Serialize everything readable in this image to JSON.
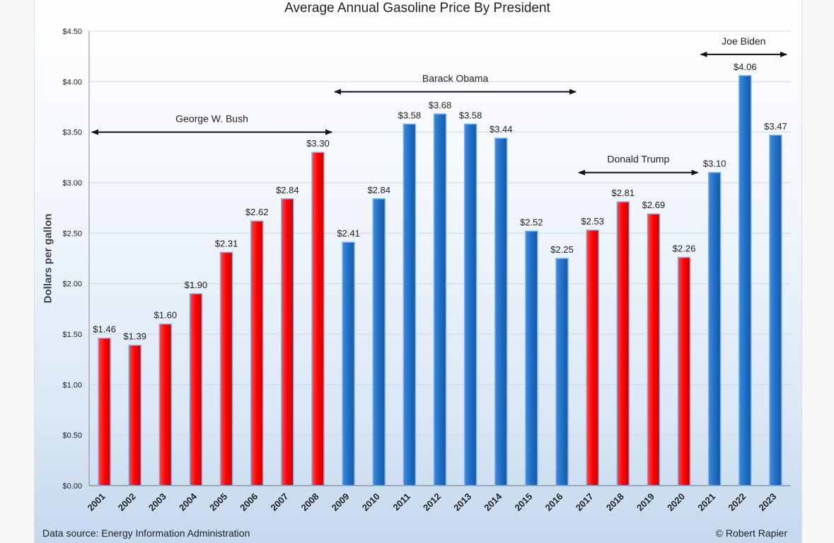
{
  "chart_data": {
    "type": "bar",
    "title": "Average Annual Gasoline Price By President",
    "ylabel": "Dollars per gallon",
    "xlabel": "",
    "ylim": [
      0,
      4.5
    ],
    "yticks": [
      0,
      0.5,
      1.0,
      1.5,
      2.0,
      2.5,
      3.0,
      3.5,
      4.0,
      4.5
    ],
    "ytick_labels": [
      "$0.00",
      "$0.50",
      "$1.00",
      "$1.50",
      "$2.00",
      "$2.50",
      "$3.00",
      "$3.50",
      "$4.00",
      "$4.50"
    ],
    "grid": "horizontal",
    "categories": [
      "2001",
      "2002",
      "2003",
      "2004",
      "2005",
      "2006",
      "2007",
      "2008",
      "2009",
      "2010",
      "2011",
      "2012",
      "2013",
      "2014",
      "2015",
      "2016",
      "2017",
      "2018",
      "2019",
      "2020",
      "2021",
      "2022",
      "2023"
    ],
    "values": [
      1.46,
      1.39,
      1.6,
      1.9,
      2.31,
      2.62,
      2.84,
      3.3,
      2.41,
      2.84,
      3.58,
      3.68,
      3.58,
      3.44,
      2.52,
      2.25,
      2.53,
      2.81,
      2.69,
      2.26,
      3.1,
      4.06,
      3.47
    ],
    "value_labels": [
      "$1.46",
      "$1.39",
      "$1.60",
      "$1.90",
      "$2.31",
      "$2.62",
      "$2.84",
      "$3.30",
      "$2.41",
      "$2.84",
      "$3.58",
      "$3.68",
      "$3.58",
      "$3.44",
      "$2.52",
      "$2.25",
      "$2.53",
      "$2.81",
      "$2.69",
      "$2.26",
      "$3.10",
      "$4.06",
      "$3.47"
    ],
    "bar_colors": [
      "red",
      "red",
      "red",
      "red",
      "red",
      "red",
      "red",
      "red",
      "blue",
      "blue",
      "blue",
      "blue",
      "blue",
      "blue",
      "blue",
      "blue",
      "red",
      "red",
      "red",
      "red",
      "blue",
      "blue",
      "blue"
    ],
    "colors": {
      "red": "#ff0000",
      "blue": "#1f6fc5"
    },
    "annotations": [
      {
        "text": "George W. Bush",
        "from": "2001",
        "to": "2008",
        "y": 3.5
      },
      {
        "text": "Barack Obama",
        "from": "2009",
        "to": "2016",
        "y": 3.9
      },
      {
        "text": "Donald Trump",
        "from": "2017",
        "to": "2020",
        "y": 3.1
      },
      {
        "text": "Joe Biden",
        "from": "2021",
        "to": "2023",
        "y": 4.27
      }
    ]
  },
  "footer": {
    "source": "Data source: Energy Information Administration",
    "credit": "© Robert Rapier"
  }
}
